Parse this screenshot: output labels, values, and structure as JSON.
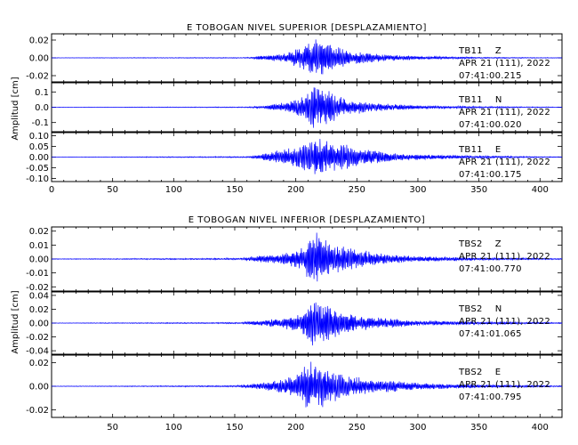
{
  "chart_data": [
    {
      "type": "line",
      "title": "E TOBOGAN NIVEL SUPERIOR [DESPLAZAMIENTO]",
      "ylabel": "Amplitud [cm]",
      "xlabel": "",
      "xlim": [
        0,
        418
      ],
      "xticks": [
        0,
        50,
        100,
        150,
        200,
        250,
        300,
        350,
        400
      ],
      "panels": [
        {
          "name": "TB11 Z",
          "station": "TB11",
          "component": "Z",
          "date": "APR 21 (111), 2022",
          "time": "07:41:00.215",
          "ylim": [
            -0.027,
            0.027
          ],
          "yticks": [
            0.02,
            0.0,
            -0.02
          ],
          "ytick_labels": [
            "0.02",
            "0.00",
            "-0.02"
          ],
          "peak_amplitude": 0.024,
          "envelope": [
            [
              0,
              0.0002
            ],
            [
              160,
              0.0005
            ],
            [
              170,
              0.002
            ],
            [
              190,
              0.005
            ],
            [
              200,
              0.01
            ],
            [
              210,
              0.016
            ],
            [
              218,
              0.024
            ],
            [
              228,
              0.016
            ],
            [
              245,
              0.008
            ],
            [
              270,
              0.004
            ],
            [
              300,
              0.002
            ],
            [
              350,
              0.0008
            ],
            [
              418,
              0.0003
            ]
          ]
        },
        {
          "name": "TB11 N",
          "station": "TB11",
          "component": "N",
          "date": "APR 21 (111), 2022",
          "time": "07:41:00.020",
          "ylim": [
            -0.16,
            0.16
          ],
          "yticks": [
            0.1,
            0.0,
            -0.1
          ],
          "ytick_labels": [
            "0.1",
            "0.0",
            "-0.1"
          ],
          "peak_amplitude": 0.14,
          "envelope": [
            [
              0,
              0.001
            ],
            [
              160,
              0.003
            ],
            [
              175,
              0.01
            ],
            [
              195,
              0.04
            ],
            [
              205,
              0.07
            ],
            [
              215,
              0.14
            ],
            [
              225,
              0.12
            ],
            [
              240,
              0.06
            ],
            [
              260,
              0.03
            ],
            [
              300,
              0.012
            ],
            [
              350,
              0.006
            ],
            [
              418,
              0.002
            ]
          ]
        },
        {
          "name": "TB11 E",
          "station": "TB11",
          "component": "E",
          "date": "APR 21 (111), 2022",
          "time": "07:41:00.175",
          "ylim": [
            -0.115,
            0.115
          ],
          "yticks": [
            0.1,
            0.05,
            0.0,
            -0.05,
            -0.1
          ],
          "ytick_labels": [
            "0.10",
            "0.05",
            "0.00",
            "-0.05",
            "-0.10"
          ],
          "peak_amplitude": 0.1,
          "envelope": [
            [
              0,
              0.0008
            ],
            [
              160,
              0.003
            ],
            [
              170,
              0.01
            ],
            [
              190,
              0.04
            ],
            [
              205,
              0.06
            ],
            [
              215,
              0.1
            ],
            [
              225,
              0.08
            ],
            [
              240,
              0.06
            ],
            [
              260,
              0.035
            ],
            [
              290,
              0.015
            ],
            [
              350,
              0.006
            ],
            [
              418,
              0.002
            ]
          ]
        }
      ]
    },
    {
      "type": "line",
      "title": "E TOBOGAN NIVEL INFERIOR [DESPLAZAMIENTO]",
      "ylabel": "Amplitud [cm]",
      "xlabel": "",
      "xlim": [
        0,
        418
      ],
      "xticks": [
        50,
        100,
        150,
        200,
        250,
        300,
        350,
        400
      ],
      "panels": [
        {
          "name": "TBS2 Z",
          "station": "TBS2",
          "component": "Z",
          "date": "APR 21 (111), 2022",
          "time": "07:41:00.770",
          "ylim": [
            -0.023,
            0.023
          ],
          "yticks": [
            0.02,
            0.01,
            0.0,
            -0.01,
            -0.02
          ],
          "ytick_labels": [
            "0.02",
            "0.01",
            "0.00",
            "-0.01",
            "-0.02"
          ],
          "peak_amplitude": 0.022,
          "envelope": [
            [
              0,
              0.0002
            ],
            [
              155,
              0.0006
            ],
            [
              165,
              0.002
            ],
            [
              190,
              0.004
            ],
            [
              205,
              0.008
            ],
            [
              215,
              0.022
            ],
            [
              225,
              0.014
            ],
            [
              245,
              0.008
            ],
            [
              270,
              0.004
            ],
            [
              300,
              0.002
            ],
            [
              350,
              0.001
            ],
            [
              418,
              0.0004
            ]
          ]
        },
        {
          "name": "TBS2 N",
          "station": "TBS2",
          "component": "N",
          "date": "APR 21 (111), 2022",
          "time": "07:41:01.065",
          "ylim": [
            -0.045,
            0.045
          ],
          "yticks": [
            0.04,
            0.02,
            0.0,
            -0.02,
            -0.04
          ],
          "ytick_labels": [
            "0.04",
            "0.02",
            "0.00",
            "-0.02",
            "-0.04"
          ],
          "peak_amplitude": 0.04,
          "envelope": [
            [
              0,
              0.0003
            ],
            [
              155,
              0.001
            ],
            [
              165,
              0.003
            ],
            [
              190,
              0.008
            ],
            [
              205,
              0.016
            ],
            [
              215,
              0.04
            ],
            [
              225,
              0.028
            ],
            [
              245,
              0.014
            ],
            [
              270,
              0.008
            ],
            [
              300,
              0.004
            ],
            [
              350,
              0.002
            ],
            [
              418,
              0.0008
            ]
          ]
        },
        {
          "name": "TBS2 E",
          "station": "TBS2",
          "component": "E",
          "date": "APR 21 (111), 2022",
          "time": "07:41:00.795",
          "ylim": [
            -0.0265,
            0.0265
          ],
          "yticks": [
            0.02,
            0.0,
            -0.02
          ],
          "ytick_labels": [
            "0.02",
            "0.00",
            "-0.02"
          ],
          "peak_amplitude": 0.023,
          "envelope": [
            [
              0,
              0.0002
            ],
            [
              150,
              0.0006
            ],
            [
              165,
              0.002
            ],
            [
              185,
              0.005
            ],
            [
              200,
              0.01
            ],
            [
              212,
              0.022
            ],
            [
              222,
              0.018
            ],
            [
              240,
              0.01
            ],
            [
              265,
              0.006
            ],
            [
              300,
              0.003
            ],
            [
              350,
              0.0015
            ],
            [
              418,
              0.0005
            ]
          ]
        }
      ]
    }
  ],
  "colors": {
    "trace": "#0000ff",
    "axes": "#000000",
    "background": "#ffffff"
  }
}
